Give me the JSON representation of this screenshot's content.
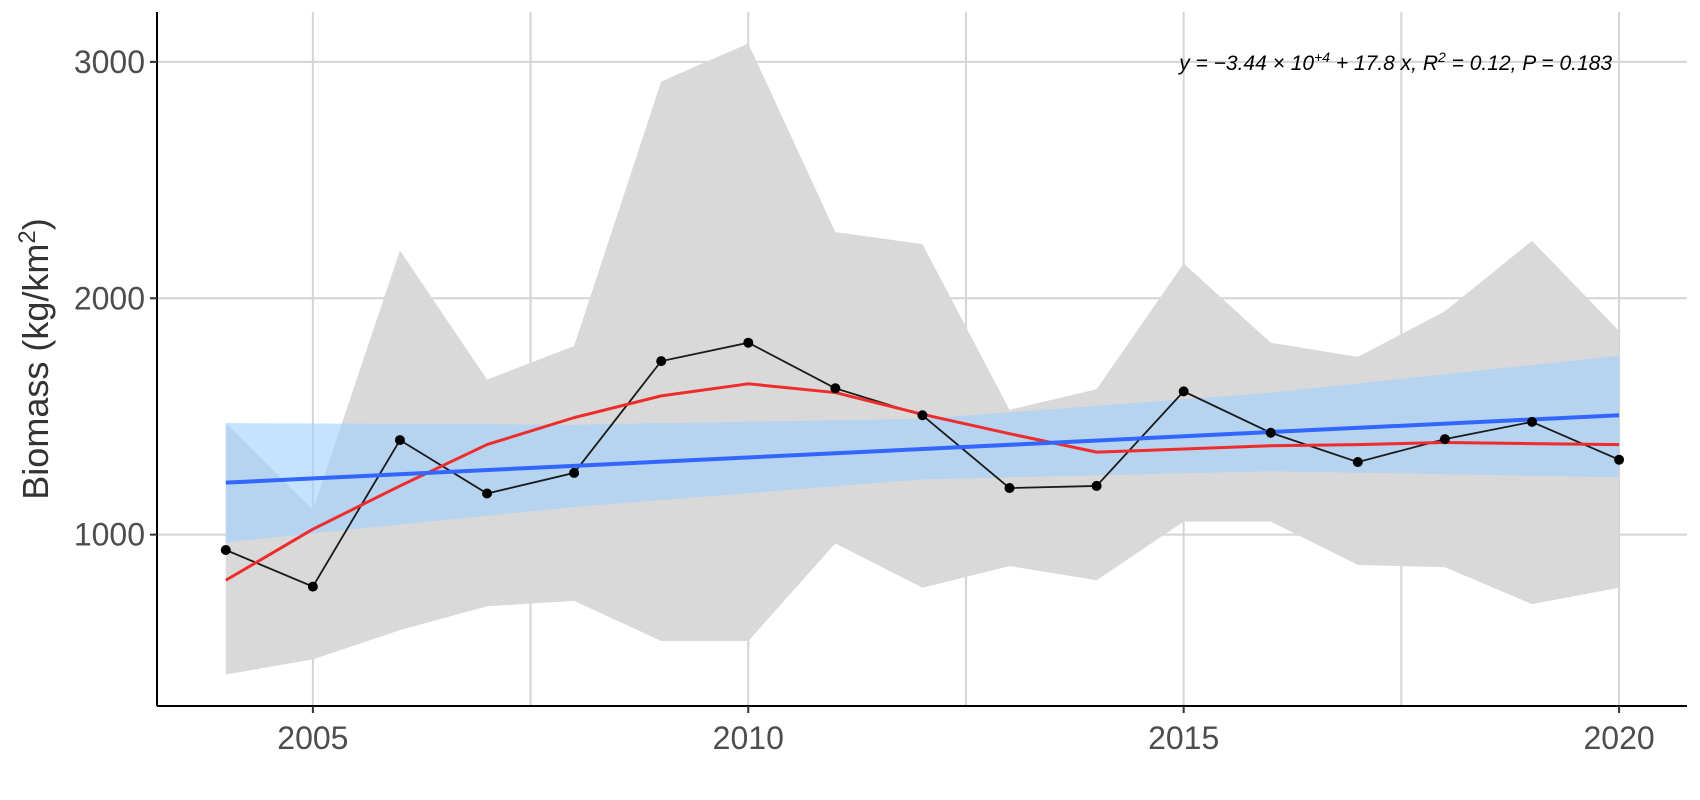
{
  "chart_data": {
    "type": "line",
    "y_label": [
      "Biomass (kg/km",
      "2",
      ")"
    ],
    "annotation": [
      "y = −3.44 × 10",
      "+4",
      " + 17.8 x, R",
      "2",
      " = 0.12, P = 0.183"
    ],
    "x": [
      2004,
      2005,
      2006,
      2007,
      2008,
      2009,
      2010,
      2011,
      2012,
      2013,
      2014,
      2015,
      2016,
      2017,
      2018,
      2019,
      2020
    ],
    "series": [
      {
        "color": "#1a1a1a",
        "values": [
          935,
          780,
          1400,
          1174,
          1261,
          1734,
          1812,
          1619,
          1505,
          1197,
          1206,
          1606,
          1431,
          1307,
          1404,
          1477,
          1317
        ]
      }
    ],
    "ci_band": {
      "color": "#d9d9d9",
      "upper": [
        1472,
        1105,
        2202,
        1656,
        1798,
        2917,
        3078,
        2280,
        2229,
        1528,
        1615,
        2147,
        1812,
        1752,
        1945,
        2243,
        1862
      ],
      "lower": [
        408,
        472,
        596,
        697,
        720,
        550,
        550,
        963,
        775,
        867,
        807,
        1055,
        1055,
        872,
        862,
        706,
        775
      ]
    },
    "trend": {
      "color": "#3366ff",
      "band_color": "#9fcfff",
      "x": [
        2004,
        2008,
        2012,
        2016,
        2020
      ],
      "values": [
        1220,
        1291,
        1362,
        1434,
        1505
      ],
      "band_upper": [
        1472,
        1465,
        1490,
        1600,
        1757
      ],
      "band_lower": [
        968,
        1117,
        1234,
        1268,
        1243
      ]
    },
    "smooth": {
      "color": "#ee2c2c",
      "values": [
        807,
        1023,
        1206,
        1381,
        1495,
        1587,
        1638,
        1601,
        1509,
        1427,
        1349,
        1362,
        1376,
        1381,
        1390,
        1385,
        1381
      ]
    },
    "xlim": [
      2003.21,
      2020.78
    ],
    "ylim": [
      275,
      3211
    ],
    "xticks": [
      2005,
      2010,
      2015,
      2020
    ],
    "xminor": [
      2007.5,
      2012.5,
      2017.5
    ],
    "yticks": [
      1000,
      2000,
      3000
    ],
    "grid": true
  }
}
